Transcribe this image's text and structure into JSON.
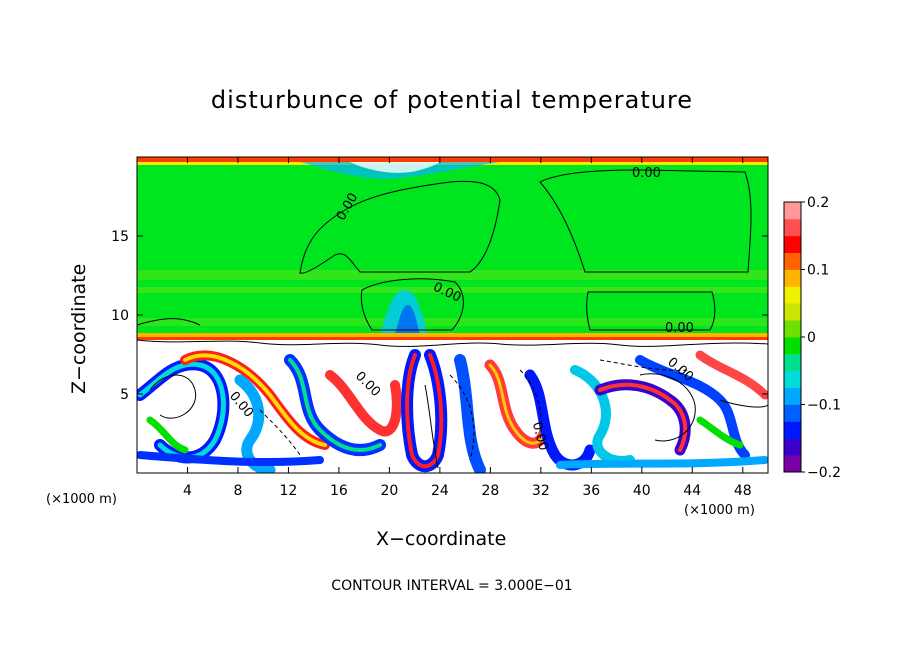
{
  "chart_data": {
    "type": "heatmap",
    "title": "disturbunce of potential temperature",
    "xlabel": "X−coordinate",
    "ylabel": "Z−coordinate",
    "x_unit": "(×1000 m)",
    "xlim": [
      0,
      50
    ],
    "ylim": [
      0,
      20
    ],
    "xticks": [
      "4",
      "8",
      "12",
      "16",
      "20",
      "24",
      "28",
      "32",
      "36",
      "40",
      "44",
      "48"
    ],
    "yticks": [
      "5",
      "10",
      "15"
    ],
    "colorbar": {
      "range": [
        -0.2,
        0.2
      ],
      "ticks": [
        "0.2",
        "0.1",
        "0",
        "−0.1",
        "−0.2"
      ],
      "colors": [
        "#7a00a8",
        "#3a00cc",
        "#0018ff",
        "#0060ff",
        "#00a8ff",
        "#00dcdc",
        "#00e08c",
        "#00e000",
        "#70e000",
        "#c8e600",
        "#f0f000",
        "#ffb400",
        "#ff6400",
        "#ff0000",
        "#ff5050",
        "#ff9999"
      ]
    },
    "contour_labels": [
      "0.00",
      "0.00",
      "0.00",
      "0.00",
      "0.00",
      "0.00",
      "0.00",
      "0.00"
    ],
    "contour_interval": "CONTOUR INTERVAL = 3.000E−01",
    "grid": false,
    "legend": "right"
  }
}
